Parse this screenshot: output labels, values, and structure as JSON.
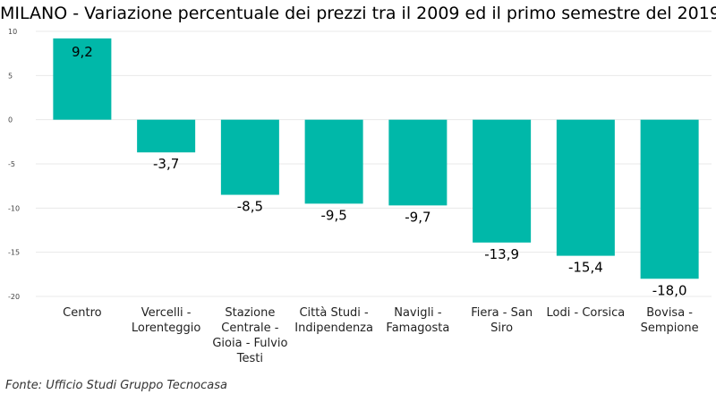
{
  "chart_data": {
    "type": "bar",
    "title": "MILANO - Variazione percentuale dei prezzi tra il 2009 ed il primo semestre del 2019",
    "xlabel": "",
    "ylabel": "",
    "ylim": [
      -20,
      10
    ],
    "yticks": [
      10,
      5,
      0,
      -5,
      -10,
      -15,
      -20
    ],
    "grid": true,
    "legend": "none",
    "bar_color": "#00b8a9",
    "categories": [
      [
        "Centro"
      ],
      [
        "Vercelli -",
        "Lorenteggio"
      ],
      [
        "Stazione",
        "Centrale -",
        "Gioia - Fulvio",
        "Testi"
      ],
      [
        "Città Studi -",
        "Indipendenza"
      ],
      [
        "Navigli -",
        "Famagosta"
      ],
      [
        "Fiera - San",
        "Siro"
      ],
      [
        "Lodi - Corsica"
      ],
      [
        "Bovisa -",
        "Sempione"
      ]
    ],
    "values": [
      9.2,
      -3.7,
      -8.5,
      -9.5,
      -9.7,
      -13.9,
      -15.4,
      -18.0
    ],
    "value_labels": [
      "9,2",
      "-3,7",
      "-8,5",
      "-9,5",
      "-9,7",
      "-13,9",
      "-15,4",
      "-18,0"
    ]
  },
  "source": "Fonte: Ufficio Studi Gruppo Tecnocasa"
}
